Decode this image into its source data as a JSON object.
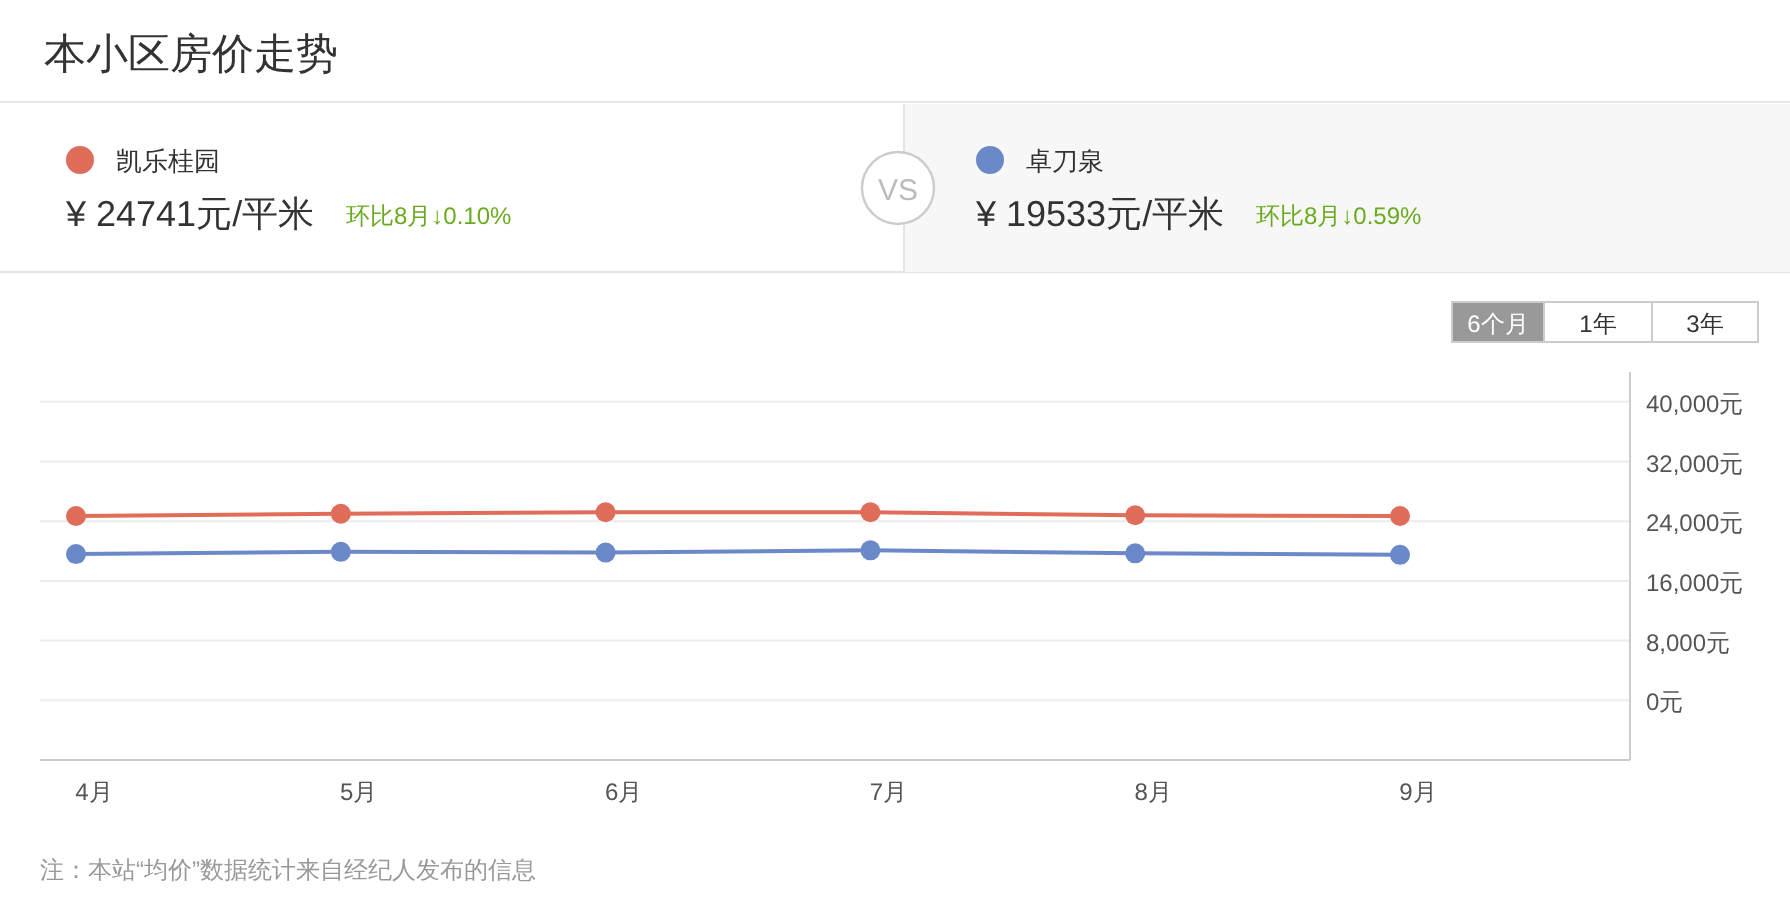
{
  "chart_data": {
    "type": "line",
    "title": "本小区房价走势",
    "categories": [
      "4月",
      "5月",
      "6月",
      "7月",
      "8月",
      "9月"
    ],
    "series": [
      {
        "name": "凯乐桂园",
        "color": "#e06c5a",
        "values": [
          24700,
          25000,
          25200,
          25200,
          24800,
          24700
        ]
      },
      {
        "name": "卓刀泉",
        "color": "#6b88c9",
        "values": [
          19600,
          19900,
          19800,
          20100,
          19700,
          19500
        ]
      }
    ],
    "ylim": [
      -8000,
      44000
    ],
    "yticks": [
      {
        "value": 0,
        "label": "0元"
      },
      {
        "value": 8000,
        "label": "8,000元"
      },
      {
        "value": 16000,
        "label": "16,000元"
      },
      {
        "value": 24000,
        "label": "24,000元"
      },
      {
        "value": 32000,
        "label": "32,000元"
      },
      {
        "value": 40000,
        "label": "40,000元"
      }
    ],
    "grid": "y",
    "legend": "top",
    "marker": "circle",
    "line_style": "solid",
    "annotations": [
      "¥ 24741元/平米",
      "环比8月↓0.10%",
      "¥ 19533元/平米",
      "环比8月↓0.59%",
      "VS",
      "6个月",
      "1年",
      "3年",
      "注：本站“均价”数据统计来自经纪人发布的信息"
    ]
  }
}
